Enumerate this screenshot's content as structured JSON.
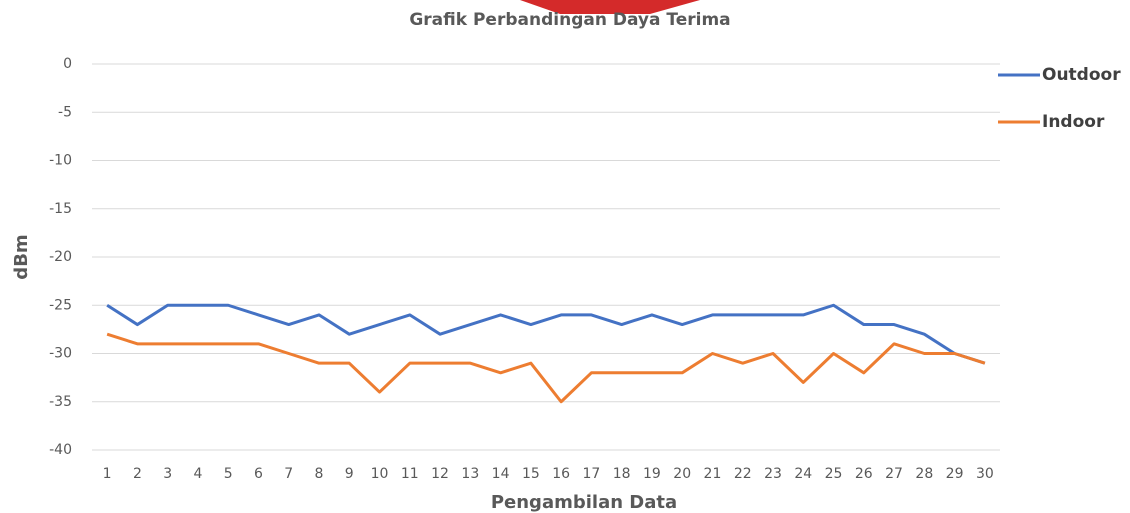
{
  "chart_data": {
    "type": "line",
    "title": "Grafik Perbandingan Daya Terima",
    "x_label": "Pengambilan Data",
    "y_label": "dBm",
    "categories": [
      "1",
      "2",
      "3",
      "4",
      "5",
      "6",
      "7",
      "8",
      "9",
      "10",
      "11",
      "12",
      "13",
      "14",
      "15",
      "16",
      "17",
      "18",
      "19",
      "20",
      "21",
      "22",
      "23",
      "24",
      "25",
      "26",
      "27",
      "28",
      "29",
      "30"
    ],
    "series": [
      {
        "name": "Outdoor",
        "color": "#4472c4",
        "values": [
          -25,
          -27,
          -25,
          -25,
          -25,
          -26,
          -27,
          -26,
          -28,
          -27,
          -26,
          -28,
          -27,
          -26,
          -27,
          -26,
          -26,
          -27,
          -26,
          -27,
          -26,
          -26,
          -26,
          -26,
          -25,
          -27,
          -27,
          -28,
          -30,
          -31
        ]
      },
      {
        "name": "Indoor",
        "color": "#ed7d31",
        "values": [
          -28,
          -29,
          -29,
          -29,
          -29,
          -29,
          -30,
          -31,
          -31,
          -34,
          -31,
          -31,
          -31,
          -32,
          -31,
          -35,
          -32,
          -32,
          -32,
          -32,
          -30,
          -31,
          -30,
          -33,
          -30,
          -32,
          -29,
          -30,
          -30,
          -31
        ]
      }
    ],
    "ylim": [
      -40,
      0
    ],
    "yticks": [
      -40,
      -35,
      -30,
      -25,
      -20,
      -15,
      -10,
      -5,
      0
    ],
    "grid": true,
    "legend": "right"
  }
}
